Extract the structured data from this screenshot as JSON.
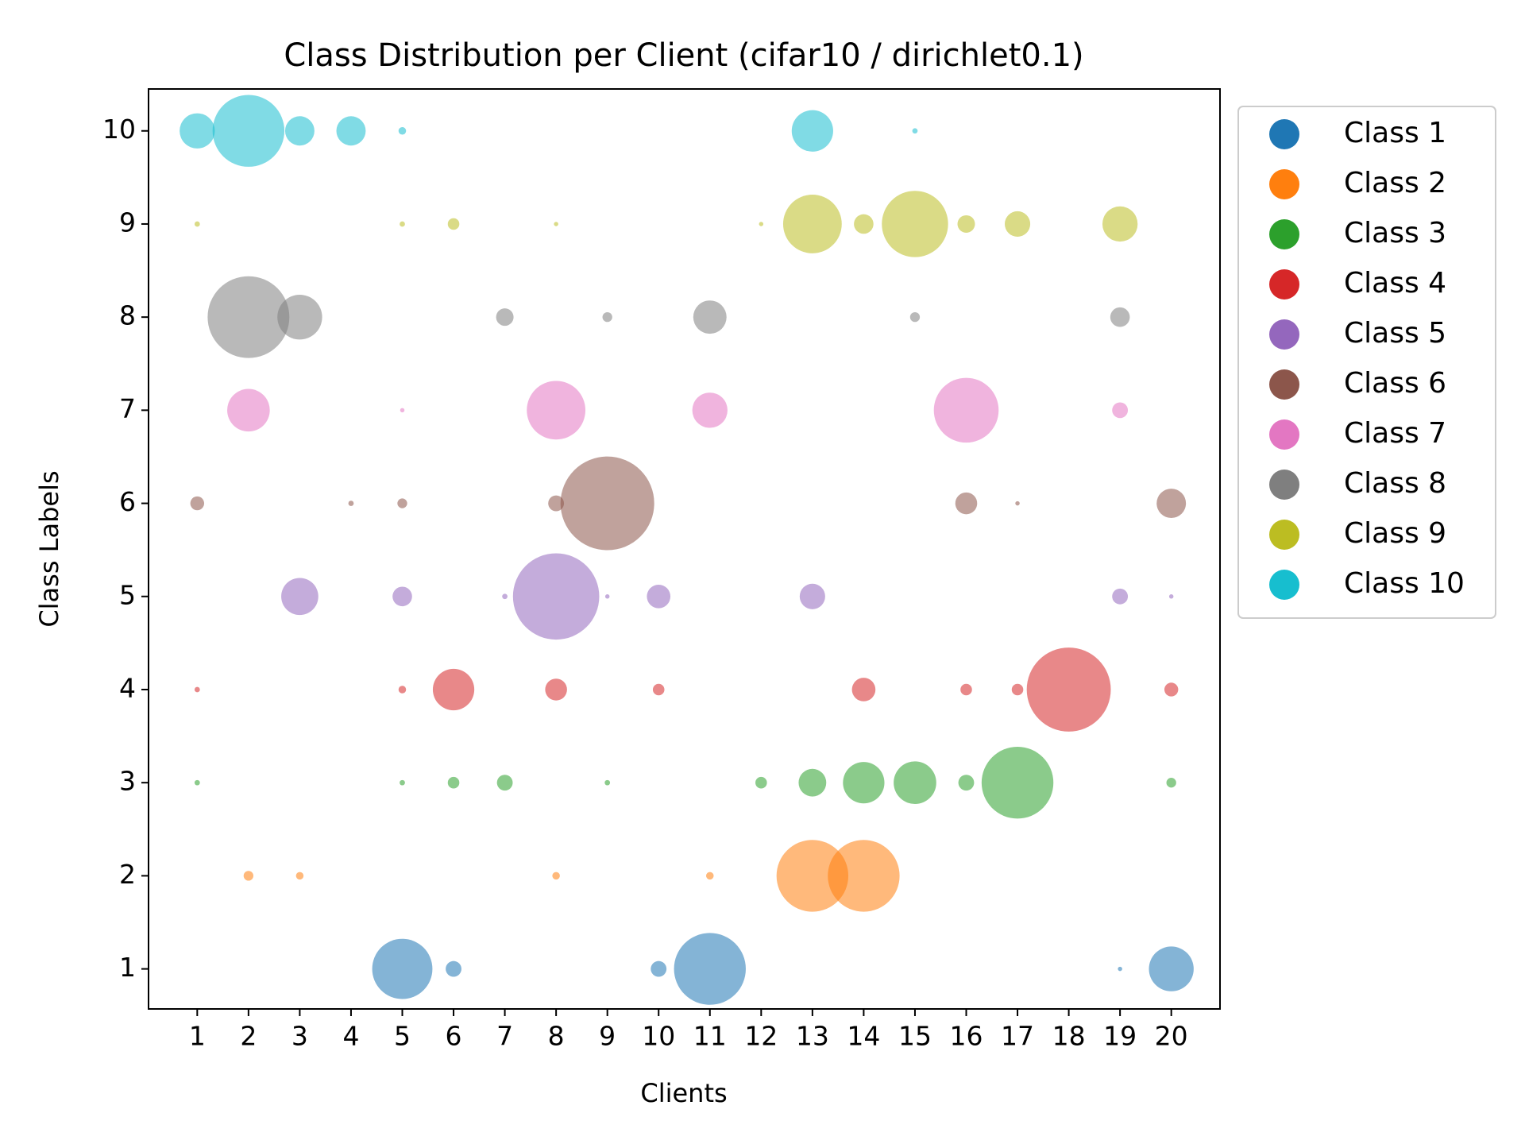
{
  "chart_data": {
    "type": "scatter",
    "title": "Class Distribution per Client (cifar10 / dirichlet0.1)",
    "xlabel": "Clients",
    "ylabel": "Class Labels",
    "xlim": [
      0.05,
      20.95
    ],
    "ylim": [
      0.57,
      10.45
    ],
    "xticks": [
      1,
      2,
      3,
      4,
      5,
      6,
      7,
      8,
      9,
      10,
      11,
      12,
      13,
      14,
      15,
      16,
      17,
      18,
      19,
      20
    ],
    "yticks": [
      1,
      2,
      3,
      4,
      5,
      6,
      7,
      8,
      9,
      10
    ],
    "legend": "outside-upper-right",
    "series": [
      {
        "name": "Class 1",
        "color": "#1f77b4",
        "x": [
          5,
          6,
          10,
          11,
          19,
          20
        ],
        "values": [
          1,
          1,
          1,
          1,
          1,
          1
        ],
        "sizes": [
          1900,
          130,
          130,
          2700,
          10,
          1050
        ]
      },
      {
        "name": "Class 2",
        "color": "#ff7f0e",
        "x": [
          2,
          3,
          8,
          11,
          13,
          14
        ],
        "values": [
          2,
          2,
          2,
          2,
          2,
          2
        ],
        "sizes": [
          50,
          30,
          30,
          30,
          2700,
          2700
        ]
      },
      {
        "name": "Class 3",
        "color": "#2ca02c",
        "x": [
          1,
          5,
          6,
          7,
          9,
          12,
          13,
          14,
          15,
          16,
          17,
          20
        ],
        "values": [
          3,
          3,
          3,
          3,
          3,
          3,
          3,
          3,
          3,
          3,
          3,
          3
        ],
        "sizes": [
          15,
          15,
          70,
          130,
          15,
          70,
          400,
          900,
          950,
          130,
          2700,
          50
        ]
      },
      {
        "name": "Class 4",
        "color": "#d62728",
        "x": [
          1,
          5,
          6,
          8,
          10,
          14,
          16,
          17,
          18,
          20
        ],
        "values": [
          4,
          4,
          4,
          4,
          4,
          4,
          4,
          4,
          4,
          4
        ],
        "sizes": [
          15,
          30,
          900,
          250,
          70,
          290,
          70,
          70,
          3700,
          100
        ]
      },
      {
        "name": "Class 5",
        "color": "#9467bd",
        "x": [
          3,
          5,
          7,
          8,
          9,
          10,
          13,
          19,
          20
        ],
        "values": [
          5,
          5,
          5,
          5,
          5,
          5,
          5,
          5,
          5
        ],
        "sizes": [
          720,
          200,
          15,
          3900,
          10,
          290,
          340,
          130,
          10
        ]
      },
      {
        "name": "Class 6",
        "color": "#8c564b",
        "x": [
          1,
          4,
          5,
          8,
          9,
          16,
          17,
          20
        ],
        "values": [
          6,
          6,
          6,
          6,
          6,
          6,
          6,
          6
        ],
        "sizes": [
          100,
          15,
          50,
          130,
          4600,
          250,
          10,
          450
        ]
      },
      {
        "name": "Class 7",
        "color": "#e377c2",
        "x": [
          2,
          5,
          8,
          11,
          16,
          19
        ],
        "values": [
          7,
          7,
          7,
          7,
          7,
          7
        ],
        "sizes": [
          950,
          10,
          1800,
          650,
          2200,
          130
        ]
      },
      {
        "name": "Class 8",
        "color": "#7f7f7f",
        "x": [
          2,
          3,
          7,
          9,
          11,
          15,
          19
        ],
        "values": [
          8,
          8,
          8,
          8,
          8,
          8,
          8
        ],
        "sizes": [
          3500,
          1050,
          160,
          50,
          580,
          50,
          200
        ]
      },
      {
        "name": "Class 9",
        "color": "#bcbd22",
        "x": [
          1,
          5,
          6,
          8,
          12,
          13,
          14,
          15,
          16,
          17,
          19
        ],
        "values": [
          9,
          9,
          9,
          9,
          9,
          9,
          9,
          9,
          9,
          9,
          9
        ],
        "sizes": [
          15,
          15,
          70,
          10,
          10,
          1800,
          200,
          2300,
          160,
          340,
          650
        ]
      },
      {
        "name": "Class 10",
        "color": "#17becf",
        "x": [
          1,
          2,
          3,
          4,
          5,
          13,
          15
        ],
        "values": [
          10,
          10,
          10,
          10,
          10,
          10,
          10
        ],
        "sizes": [
          650,
          2700,
          450,
          450,
          30,
          900,
          15
        ]
      }
    ]
  }
}
